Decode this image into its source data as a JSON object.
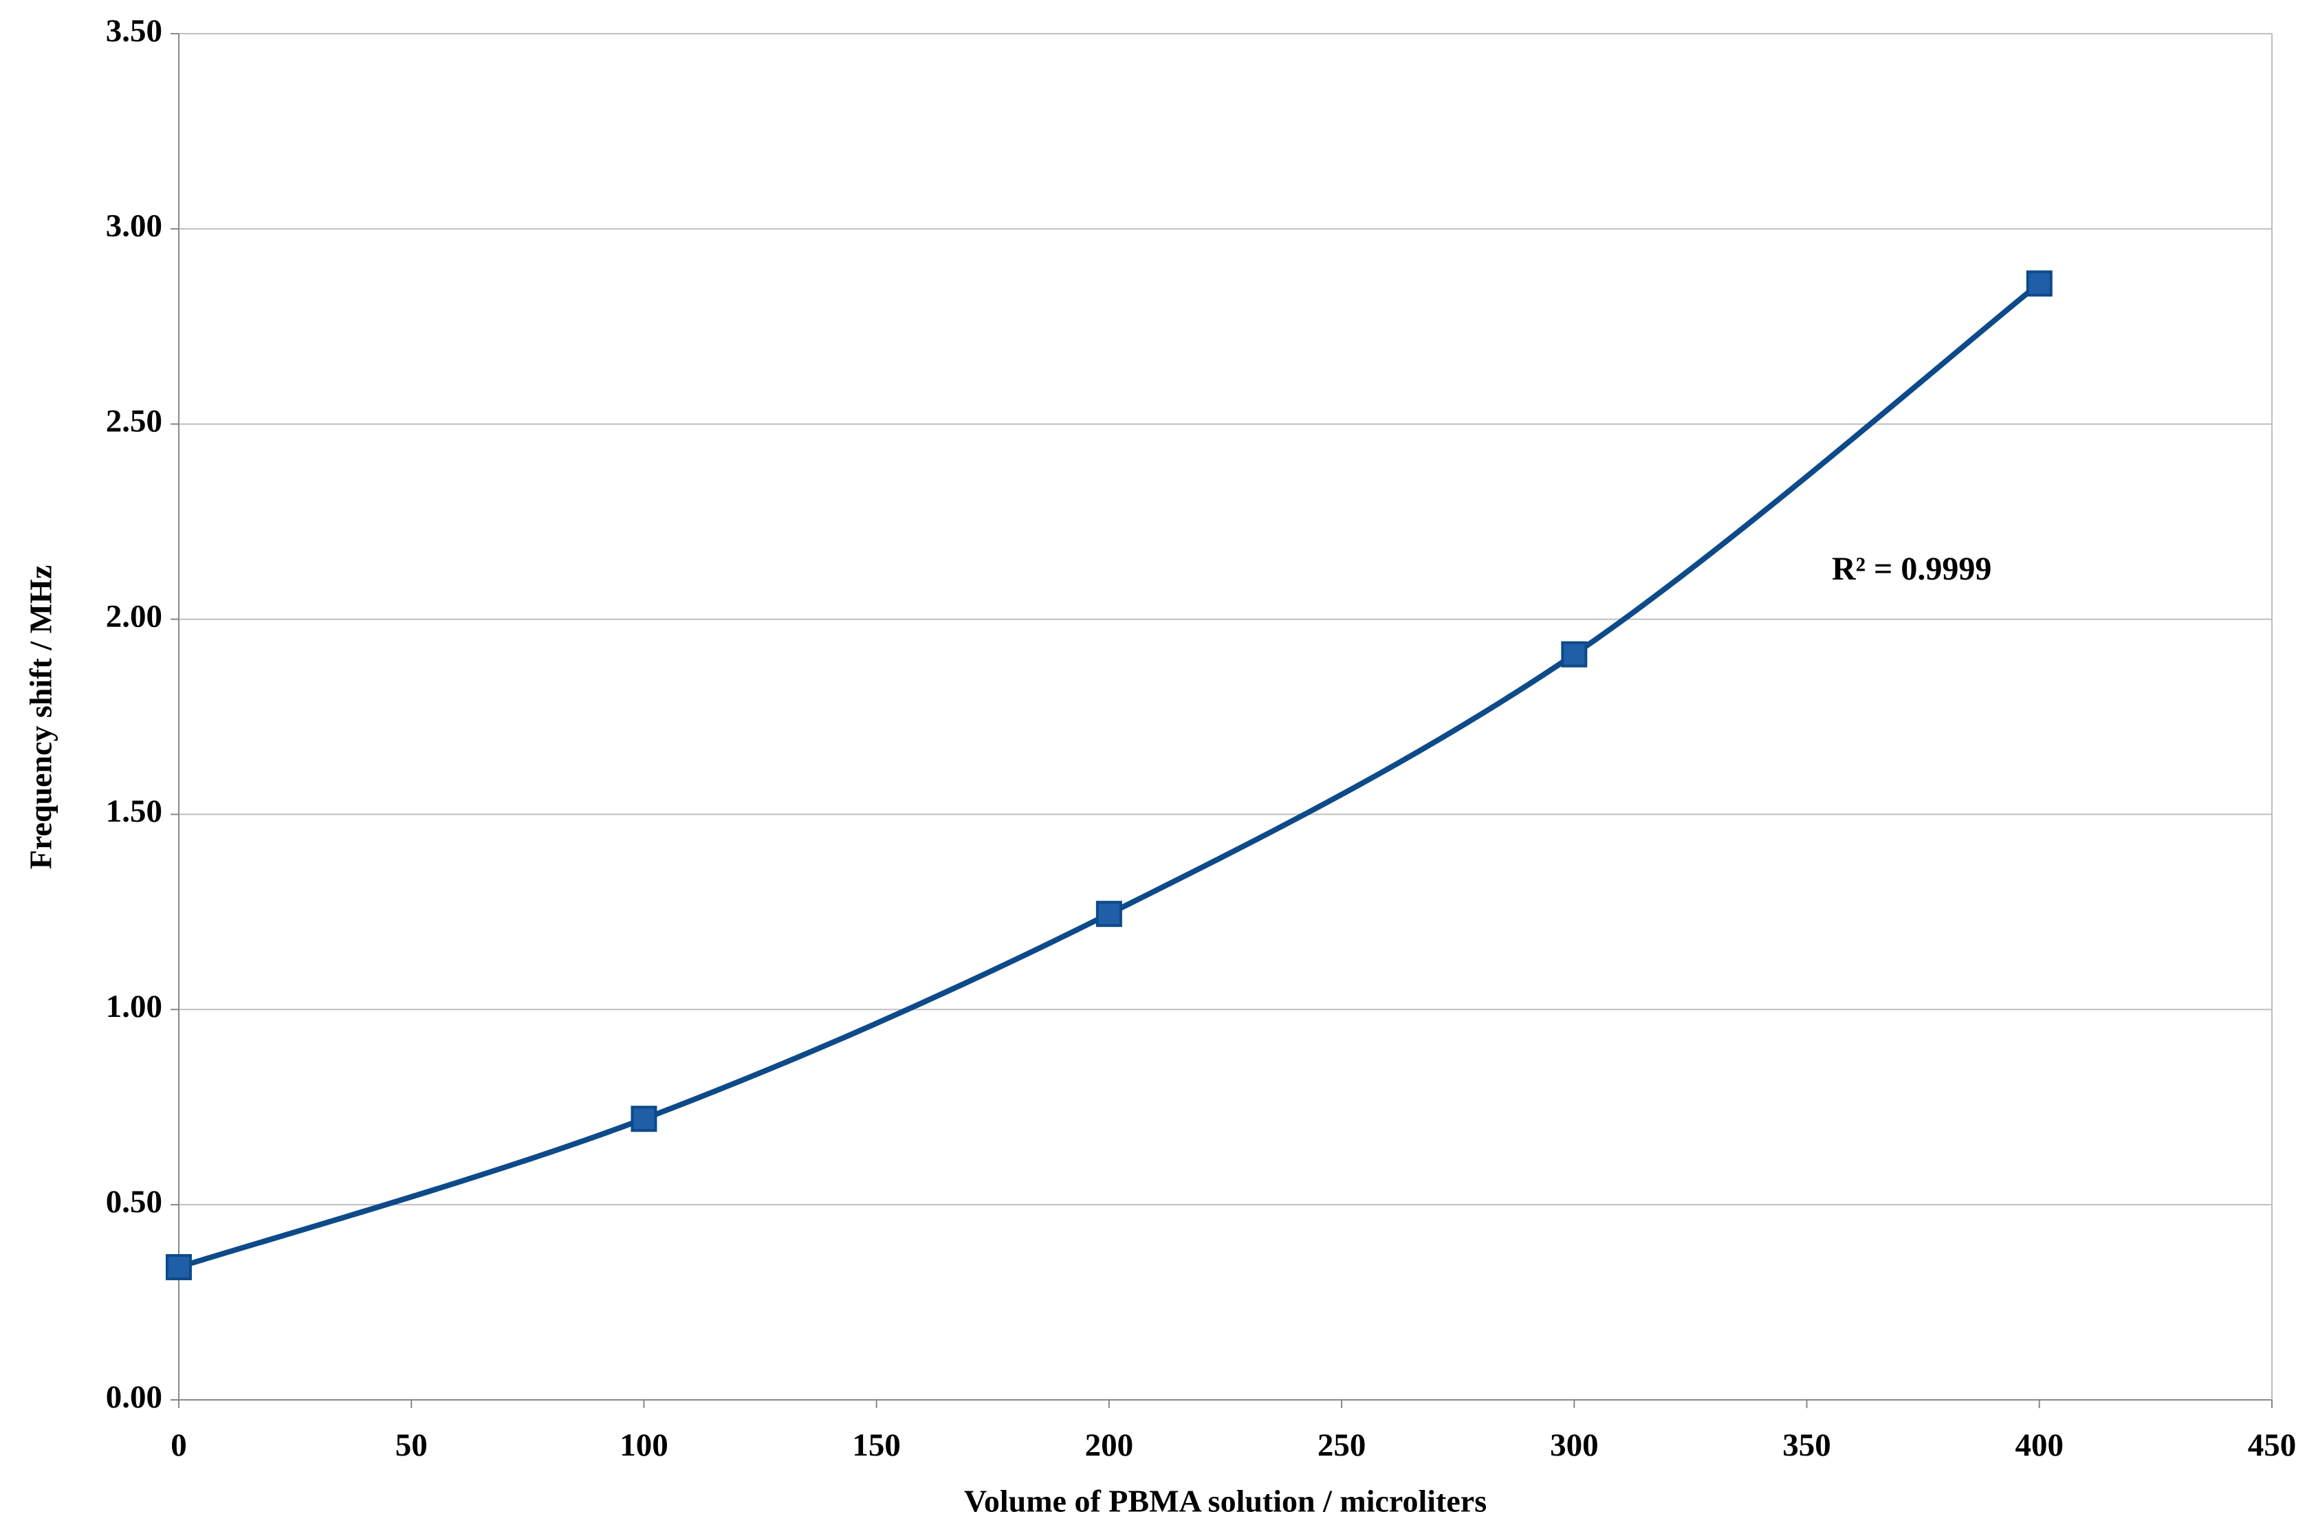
{
  "chart_data": {
    "type": "line",
    "x_label": "Volume of PBMA solution / microliters",
    "y_label": "Frequency shift / MHz",
    "annotation": "R² = 0.9999",
    "x": [
      0,
      100,
      200,
      300,
      400
    ],
    "series": [
      {
        "color": "#0d4a8a",
        "values": [
          0.34,
          0.72,
          1.245,
          1.91,
          2.86
        ]
      }
    ],
    "xlim": [
      0,
      450
    ],
    "xticks": [
      0,
      50,
      100,
      150,
      200,
      250,
      300,
      350,
      400,
      450
    ],
    "ylim": [
      0,
      3.5
    ],
    "yticks": [
      {
        "value": 0,
        "label": "0.00"
      },
      {
        "value": 0.5,
        "label": "0.50"
      },
      {
        "value": 1,
        "label": "1.00"
      },
      {
        "value": 1.5,
        "label": "1.50"
      },
      {
        "value": 2,
        "label": "2.00"
      },
      {
        "value": 2.5,
        "label": "2.50"
      },
      {
        "value": 3,
        "label": "3.00"
      },
      {
        "value": 3.5,
        "label": "3.50"
      }
    ],
    "grid": true,
    "markers": "square"
  }
}
